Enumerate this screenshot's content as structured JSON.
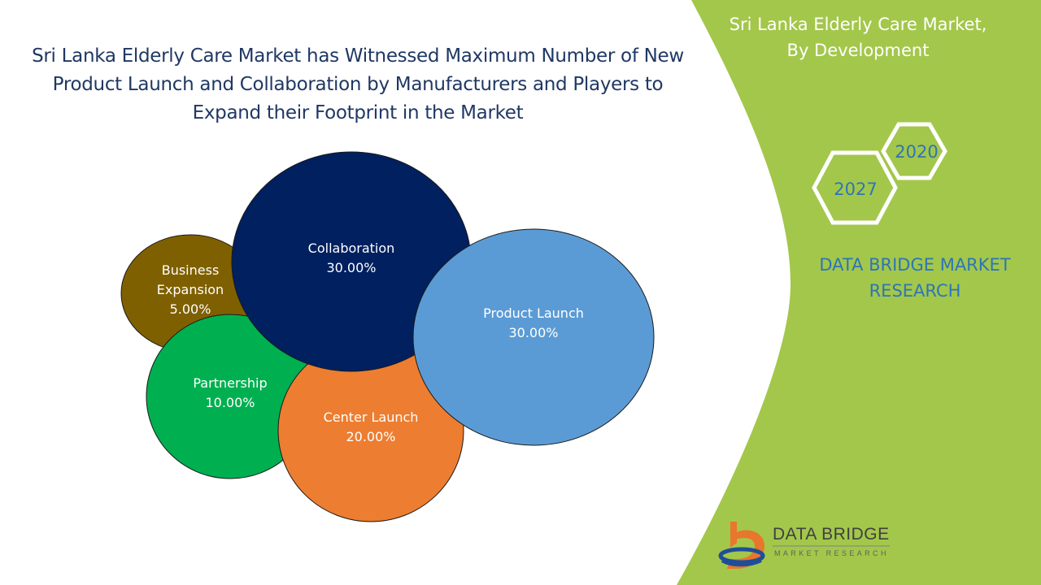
{
  "headline": "Sri Lanka Elderly Care Market has Witnessed Maximum Number of New Product Launch and Collaboration by Manufacturers and Players to Expand their Footprint in the Market",
  "panel": {
    "title_line1": "Sri Lanka Elderly Care Market,",
    "title_line2": "By Development",
    "years": [
      "2020",
      "2027"
    ],
    "brand_line1": "DATA BRIDGE MARKET",
    "brand_line2": "RESEARCH"
  },
  "logo": {
    "name": "DATA BRIDGE",
    "tagline": "MARKET RESEARCH"
  },
  "colors": {
    "panel_green": "#a3c74b",
    "title_navy": "#1f3864",
    "brand_blue": "#2e75b6"
  },
  "chart_data": {
    "type": "bubble",
    "title": "",
    "series": [
      {
        "label": "Business Expansion",
        "label_lines": [
          "Business",
          "Expansion"
        ],
        "value": 5.0,
        "value_text": "5.00%",
        "color": "#7f6000"
      },
      {
        "label": "Partnership",
        "label_lines": [
          "Partnership"
        ],
        "value": 10.0,
        "value_text": "10.00%",
        "color": "#00b050"
      },
      {
        "label": "Center Launch",
        "label_lines": [
          "Center Launch"
        ],
        "value": 20.0,
        "value_text": "20.00%",
        "color": "#ed7d31"
      },
      {
        "label": "Collaboration",
        "label_lines": [
          "Collaboration"
        ],
        "value": 30.0,
        "value_text": "30.00%",
        "color": "#002060"
      },
      {
        "label": "Product Launch",
        "label_lines": [
          "Product Launch"
        ],
        "value": 30.0,
        "value_text": "30.00%",
        "color": "#5b9bd5"
      }
    ]
  }
}
